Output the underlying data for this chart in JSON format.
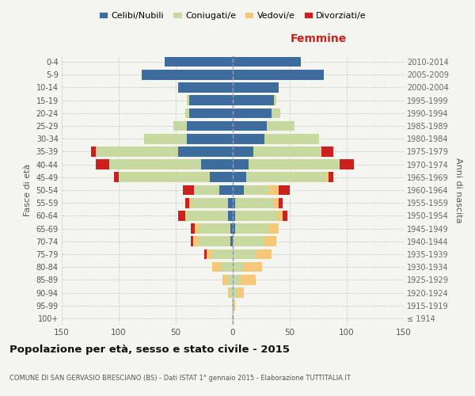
{
  "age_groups": [
    "100+",
    "95-99",
    "90-94",
    "85-89",
    "80-84",
    "75-79",
    "70-74",
    "65-69",
    "60-64",
    "55-59",
    "50-54",
    "45-49",
    "40-44",
    "35-39",
    "30-34",
    "25-29",
    "20-24",
    "15-19",
    "10-14",
    "5-9",
    "0-4"
  ],
  "birth_years": [
    "≤ 1914",
    "1915-1919",
    "1920-1924",
    "1925-1929",
    "1930-1934",
    "1935-1939",
    "1940-1944",
    "1945-1949",
    "1950-1954",
    "1955-1959",
    "1960-1964",
    "1965-1969",
    "1970-1974",
    "1975-1979",
    "1980-1984",
    "1985-1989",
    "1990-1994",
    "1995-1999",
    "2000-2004",
    "2005-2009",
    "2010-2014"
  ],
  "male": {
    "celibi": [
      0,
      0,
      0,
      0,
      0,
      0,
      2,
      2,
      4,
      4,
      12,
      20,
      28,
      48,
      40,
      40,
      38,
      38,
      48,
      80,
      60
    ],
    "coniugati": [
      1,
      1,
      3,
      5,
      10,
      18,
      28,
      28,
      36,
      32,
      22,
      80,
      80,
      72,
      38,
      12,
      4,
      2,
      0,
      0,
      0
    ],
    "vedovi": [
      0,
      0,
      1,
      4,
      8,
      5,
      5,
      3,
      2,
      2,
      0,
      0,
      0,
      0,
      0,
      0,
      0,
      0,
      0,
      0,
      0
    ],
    "divorziati": [
      0,
      0,
      0,
      0,
      0,
      2,
      2,
      4,
      6,
      4,
      10,
      4,
      12,
      4,
      0,
      0,
      0,
      0,
      0,
      0,
      0
    ]
  },
  "female": {
    "nubili": [
      0,
      0,
      0,
      0,
      0,
      0,
      0,
      2,
      2,
      2,
      10,
      12,
      14,
      18,
      28,
      30,
      34,
      36,
      40,
      80,
      60
    ],
    "coniugate": [
      1,
      1,
      4,
      6,
      10,
      20,
      28,
      30,
      36,
      34,
      22,
      70,
      80,
      60,
      48,
      24,
      8,
      2,
      0,
      0,
      0
    ],
    "vedove": [
      0,
      1,
      6,
      14,
      16,
      14,
      10,
      8,
      6,
      4,
      8,
      2,
      0,
      0,
      0,
      0,
      0,
      0,
      0,
      0,
      0
    ],
    "divorziate": [
      0,
      0,
      0,
      0,
      0,
      0,
      0,
      0,
      4,
      4,
      10,
      4,
      12,
      10,
      0,
      0,
      0,
      0,
      0,
      0,
      0
    ]
  },
  "colors": {
    "celibi_nubili": "#3d6d9e",
    "coniugati": "#c8d9a0",
    "vedovi": "#f5c878",
    "divorziati": "#cc2020"
  },
  "xlim": 150,
  "title": "Popolazione per età, sesso e stato civile - 2015",
  "subtitle": "COMUNE DI SAN GERVASIO BRESCIANO (BS) - Dati ISTAT 1° gennaio 2015 - Elaborazione TUTTITALIA.IT",
  "ylabel_left": "Fasce di età",
  "ylabel_right": "Anni di nascita",
  "xlabel_right": "Femmine",
  "background_color": "#f5f5f0",
  "grid_color": "#cccccc"
}
